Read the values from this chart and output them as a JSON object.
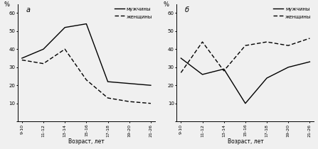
{
  "x_labels": [
    "9-10",
    "11-12",
    "13-14",
    "15-16",
    "17-18",
    "19-20",
    "21-26"
  ],
  "x_positions": [
    0,
    1,
    2,
    3,
    4,
    5,
    6
  ],
  "chart_a": {
    "title": "а",
    "men": [
      35,
      40,
      52,
      54,
      22,
      21,
      20
    ],
    "women": [
      34,
      32,
      40,
      23,
      13,
      11,
      10
    ]
  },
  "chart_b": {
    "title": "б",
    "men": [
      35,
      26,
      29,
      10,
      24,
      30,
      33
    ],
    "women": [
      27,
      44,
      28,
      42,
      44,
      42,
      46
    ]
  },
  "ylabel": "%",
  "xlabel": "Возраст, лет",
  "legend_men": "мужчины",
  "legend_women": "женщины",
  "ylim": [
    0,
    65
  ],
  "yticks": [
    0,
    10,
    20,
    30,
    40,
    50,
    60
  ],
  "line_color": "#000000",
  "bg_color": "#f0f0f0"
}
